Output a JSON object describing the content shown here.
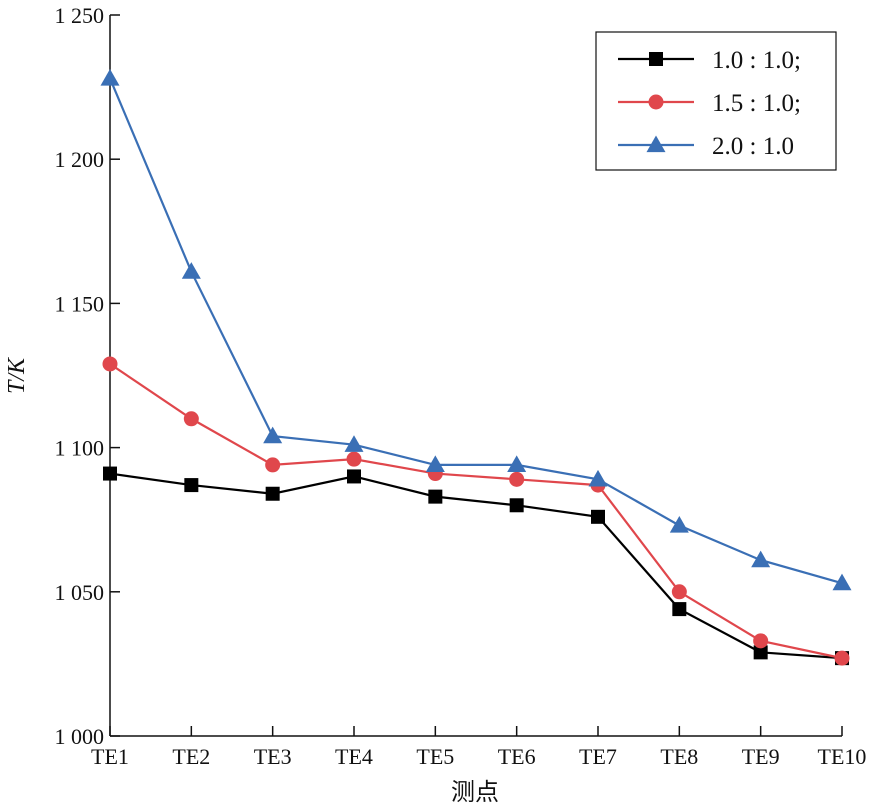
{
  "chart_data": {
    "type": "line",
    "title": "",
    "xlabel": "测点",
    "ylabel": "T/K",
    "categories": [
      "TE1",
      "TE2",
      "TE3",
      "TE4",
      "TE5",
      "TE6",
      "TE7",
      "TE8",
      "TE9",
      "TE10"
    ],
    "ylim": [
      1000,
      1250
    ],
    "yticks": [
      1000,
      1050,
      1100,
      1150,
      1200,
      1250
    ],
    "ytick_labels": [
      "1 000",
      "1 050",
      "1 100",
      "1 150",
      "1 200",
      "1 250"
    ],
    "grid": false,
    "legend_position": "top-right",
    "series": [
      {
        "name": "1.0 : 1.0;",
        "color": "#000000",
        "marker": "square",
        "values": [
          1091,
          1087,
          1084,
          1090,
          1083,
          1080,
          1076,
          1044,
          1029,
          1027
        ]
      },
      {
        "name": "1.5 : 1.0;",
        "color": "#e0474c",
        "marker": "circle",
        "values": [
          1129,
          1110,
          1094,
          1096,
          1091,
          1089,
          1087,
          1050,
          1033,
          1027
        ]
      },
      {
        "name": "2.0 : 1.0",
        "color": "#3a6fb5",
        "marker": "triangle",
        "values": [
          1228,
          1161,
          1104,
          1101,
          1094,
          1094,
          1089,
          1073,
          1061,
          1053
        ]
      }
    ]
  }
}
